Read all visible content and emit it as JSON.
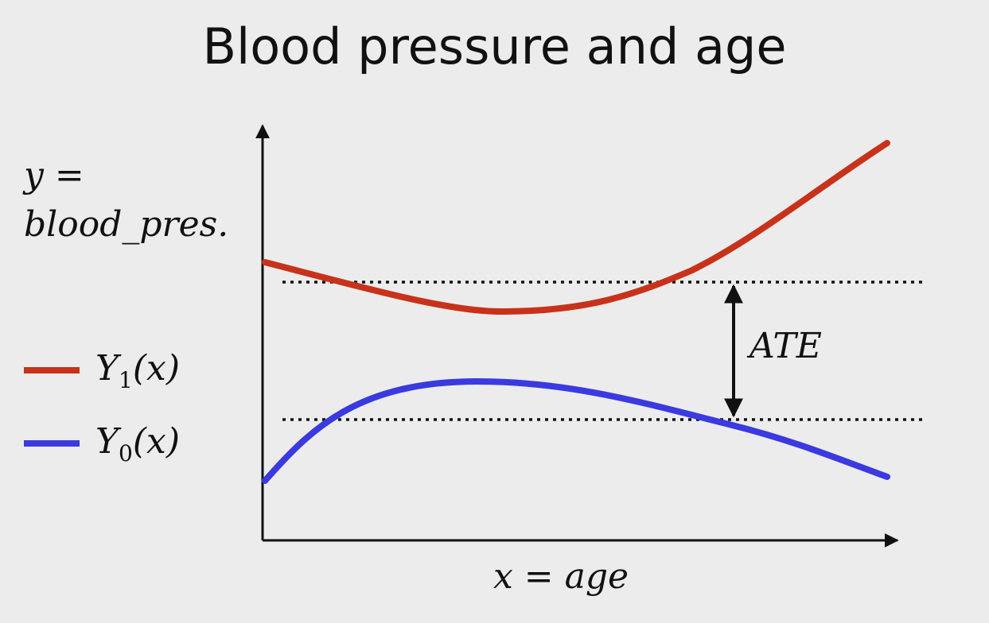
{
  "title": "Blood pressure and age",
  "y_label": {
    "line1": "y =",
    "line2": "blood_pres."
  },
  "x_label": "x = age",
  "annotation": "ATE",
  "legend": [
    {
      "base": "Y",
      "sub": "1",
      "suffix": "(x)",
      "color": "#c8321a"
    },
    {
      "base": "Y",
      "sub": "0",
      "suffix": "(x)",
      "color": "#3a3ae0"
    }
  ],
  "colors": {
    "y1": "#c8321a",
    "y0": "#3a3ae0",
    "axis": "#111111"
  }
}
